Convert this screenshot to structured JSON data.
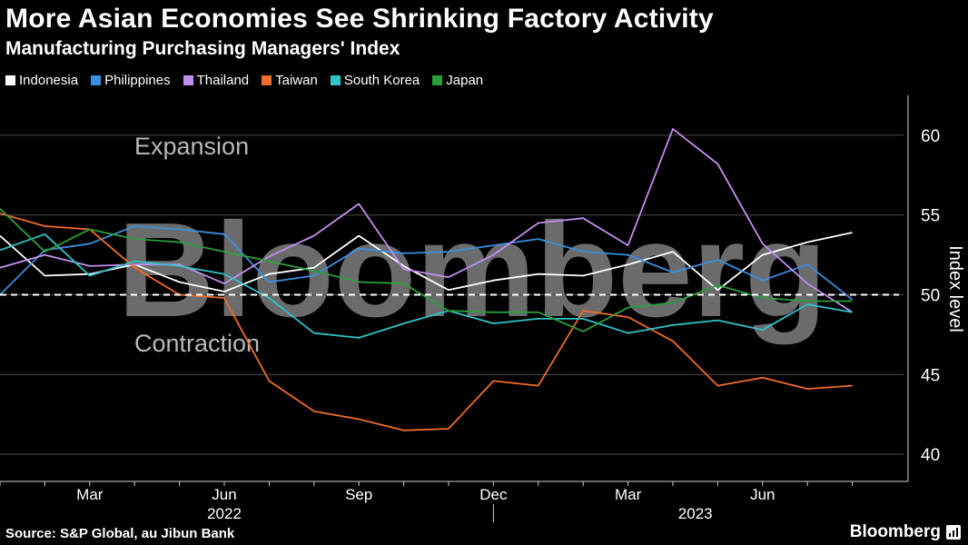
{
  "header": {
    "title": "More Asian Economies See Shrinking Factory Activity",
    "subtitle": "Manufacturing Purchasing Managers' Index"
  },
  "footer": {
    "source": "Source: S&P Global, au Jibun Bank",
    "brand": "Bloomberg",
    "watermark": "Bloomberg"
  },
  "colors": {
    "background": "#000000",
    "grid": "#4d4d4d",
    "reference_line": "#ffffff"
  },
  "chart_data": {
    "type": "line",
    "title": "More Asian Economies See Shrinking Factory Activity",
    "subtitle": "Manufacturing Purchasing Managers' Index",
    "ylabel": "Index level",
    "xlabel": "",
    "x": [
      "2022-01",
      "2022-02",
      "2022-03",
      "2022-04",
      "2022-05",
      "2022-06",
      "2022-07",
      "2022-08",
      "2022-09",
      "2022-10",
      "2022-11",
      "2022-12",
      "2023-01",
      "2023-02",
      "2023-03",
      "2023-04",
      "2023-05",
      "2023-06",
      "2023-07",
      "2023-08"
    ],
    "x_tick_labels": [
      {
        "x": "2022-03",
        "label": "Mar"
      },
      {
        "x": "2022-06",
        "label": "Jun"
      },
      {
        "x": "2022-09",
        "label": "Sep"
      },
      {
        "x": "2022-12",
        "label": "Dec"
      },
      {
        "x": "2023-03",
        "label": "Mar"
      },
      {
        "x": "2023-06",
        "label": "Jun"
      }
    ],
    "year_labels": [
      "2022",
      "2023"
    ],
    "yticks": [
      40,
      45,
      50,
      55,
      60
    ],
    "ylim": [
      38.3,
      62.5
    ],
    "grid": true,
    "legend_position": "top-left",
    "reference_line": 50,
    "annotations": [
      "Expansion",
      "Contraction"
    ],
    "series": [
      {
        "name": "Indonesia",
        "color": "#ffffff",
        "values": [
          53.7,
          51.2,
          51.3,
          51.9,
          50.8,
          50.2,
          51.3,
          51.7,
          53.7,
          51.8,
          50.3,
          50.9,
          51.3,
          51.2,
          51.9,
          52.7,
          50.3,
          52.5,
          53.3,
          53.9
        ]
      },
      {
        "name": "Philippines",
        "color": "#3a8fe0",
        "values": [
          50.0,
          52.8,
          53.2,
          54.3,
          54.1,
          53.8,
          50.8,
          51.2,
          52.9,
          52.6,
          52.7,
          53.1,
          53.5,
          52.7,
          52.5,
          51.4,
          52.2,
          50.9,
          51.9,
          49.7
        ]
      },
      {
        "name": "Thailand",
        "color": "#c28ff0",
        "values": [
          51.7,
          52.5,
          51.8,
          51.9,
          51.9,
          50.7,
          52.4,
          53.7,
          55.7,
          51.6,
          51.1,
          52.5,
          54.5,
          54.8,
          53.1,
          60.4,
          58.2,
          53.2,
          50.7,
          48.9
        ]
      },
      {
        "name": "Taiwan",
        "color": "#f26b2a",
        "values": [
          55.1,
          54.3,
          54.1,
          51.7,
          50.0,
          49.8,
          44.6,
          42.7,
          42.2,
          41.5,
          41.6,
          44.6,
          44.3,
          49.0,
          48.6,
          47.1,
          44.3,
          44.8,
          44.1,
          44.3
        ]
      },
      {
        "name": "South Korea",
        "color": "#2ec4c9",
        "values": [
          52.8,
          53.8,
          51.2,
          52.1,
          51.8,
          51.3,
          49.8,
          47.6,
          47.3,
          48.2,
          49.0,
          48.2,
          48.5,
          48.5,
          47.6,
          48.1,
          48.4,
          47.8,
          49.4,
          48.9
        ]
      },
      {
        "name": "Japan",
        "color": "#2a9e3c",
        "values": [
          55.4,
          52.7,
          54.1,
          53.5,
          53.3,
          52.7,
          52.1,
          51.5,
          50.8,
          50.7,
          49.0,
          48.9,
          48.9,
          47.7,
          49.2,
          49.5,
          50.6,
          49.8,
          49.6,
          49.6
        ]
      }
    ]
  }
}
